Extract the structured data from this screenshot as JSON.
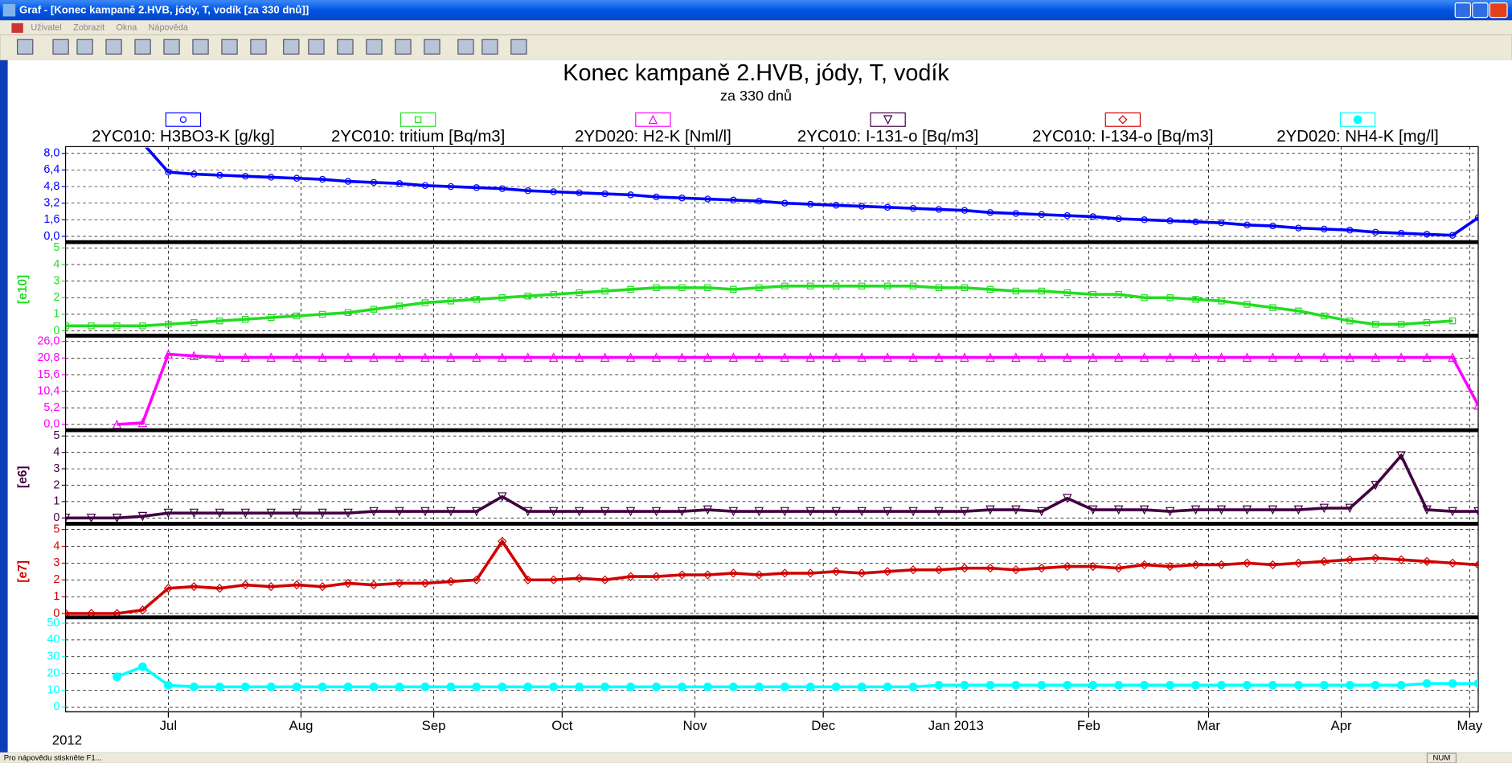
{
  "window": {
    "title": "Graf - [Konec kampaně 2.HVB, jódy, T, vodík  [za 330 dnů]]",
    "menu": [
      "Uživatel",
      "Zobrazit",
      "Okna",
      "Nápověda"
    ],
    "status": "Pro nápovědu stiskněte F1...",
    "indicator": "NUM"
  },
  "chart_data": {
    "type": "line",
    "title": "Konec kampaně 2.HVB, jódy, T, vodík",
    "subtitle": "za 330 dnů",
    "year_label": "2012",
    "grid": true,
    "xlim": [
      0,
      330
    ],
    "xticks": [
      {
        "value": 24,
        "label": "Jul"
      },
      {
        "value": 55,
        "label": "Aug"
      },
      {
        "value": 86,
        "label": "Sep"
      },
      {
        "value": 116,
        "label": "Oct"
      },
      {
        "value": 147,
        "label": "Nov"
      },
      {
        "value": 177,
        "label": "Dec"
      },
      {
        "value": 208,
        "label": "Jan 2013"
      },
      {
        "value": 239,
        "label": "Feb"
      },
      {
        "value": 267,
        "label": "Mar"
      },
      {
        "value": 298,
        "label": "Apr"
      },
      {
        "value": 328,
        "label": "May"
      }
    ],
    "x": [
      0,
      6,
      12,
      18,
      24,
      30,
      36,
      42,
      48,
      54,
      60,
      66,
      72,
      78,
      84,
      90,
      96,
      102,
      108,
      114,
      120,
      126,
      132,
      138,
      144,
      150,
      156,
      162,
      168,
      174,
      180,
      186,
      192,
      198,
      204,
      210,
      216,
      222,
      228,
      234,
      240,
      246,
      252,
      258,
      264,
      270,
      276,
      282,
      288,
      294,
      300,
      306,
      312,
      318,
      324,
      330
    ],
    "series": [
      {
        "name": "2YC010: H3BO3-K [g/kg]",
        "color": "#0000ff",
        "marker": "circle",
        "ylim": [
          0,
          8
        ],
        "yticks": [
          {
            "value": 0,
            "label": "0,0"
          },
          {
            "value": 1.6,
            "label": "1,6"
          },
          {
            "value": 3.2,
            "label": "3,2"
          },
          {
            "value": 4.8,
            "label": "4,8"
          },
          {
            "value": 6.4,
            "label": "6,4"
          },
          {
            "value": 8,
            "label": "8,0"
          }
        ],
        "values": [
          null,
          null,
          null,
          9.0,
          6.2,
          6.0,
          5.9,
          5.8,
          5.7,
          5.6,
          5.5,
          5.3,
          5.2,
          5.1,
          4.9,
          4.8,
          4.7,
          4.6,
          4.4,
          4.3,
          4.2,
          4.1,
          4.0,
          3.8,
          3.7,
          3.6,
          3.5,
          3.4,
          3.2,
          3.1,
          3.0,
          2.9,
          2.8,
          2.7,
          2.6,
          2.5,
          2.3,
          2.2,
          2.1,
          2.0,
          1.9,
          1.7,
          1.6,
          1.5,
          1.4,
          1.3,
          1.1,
          1.0,
          0.8,
          0.7,
          0.6,
          0.4,
          0.3,
          0.2,
          0.1,
          1.8
        ]
      },
      {
        "name": "2YC010: tritium [Bq/m3]",
        "color": "#22dd22",
        "marker": "square",
        "ylim": [
          0,
          5
        ],
        "scale_label": "[e10]",
        "yticks": [
          0,
          1,
          2,
          3,
          4,
          5
        ],
        "values": [
          0.3,
          0.3,
          0.3,
          0.3,
          0.4,
          0.5,
          0.6,
          0.7,
          0.8,
          0.9,
          1.0,
          1.1,
          1.3,
          1.5,
          1.7,
          1.8,
          1.9,
          2.0,
          2.1,
          2.2,
          2.3,
          2.4,
          2.5,
          2.6,
          2.6,
          2.6,
          2.5,
          2.6,
          2.7,
          2.7,
          2.7,
          2.7,
          2.7,
          2.7,
          2.6,
          2.6,
          2.5,
          2.4,
          2.4,
          2.3,
          2.2,
          2.2,
          2.0,
          2.0,
          1.9,
          1.8,
          1.6,
          1.4,
          1.2,
          0.9,
          0.6,
          0.4,
          0.4,
          0.5,
          0.6,
          null
        ]
      },
      {
        "name": "2YD020: H2-K [Nml/l]",
        "color": "#ff00ff",
        "marker": "triangle",
        "ylim": [
          0,
          26
        ],
        "yticks": [
          {
            "value": 0,
            "label": "0,0"
          },
          {
            "value": 5.2,
            "label": "5,2"
          },
          {
            "value": 10.4,
            "label": "10,4"
          },
          {
            "value": 15.6,
            "label": "15,6"
          },
          {
            "value": 20.8,
            "label": "20,8"
          },
          {
            "value": 26,
            "label": "26,0"
          }
        ],
        "values": [
          null,
          null,
          0,
          0.5,
          22,
          21.5,
          21,
          21,
          21,
          21,
          21,
          21,
          21,
          21,
          21,
          21,
          21,
          21,
          21,
          21,
          21,
          21,
          21,
          21,
          21,
          21,
          21,
          21,
          21,
          21,
          21,
          21,
          21,
          21,
          21,
          21,
          21,
          21,
          21,
          21,
          21,
          21,
          21,
          21,
          21,
          21,
          21,
          21,
          21,
          21,
          21,
          21,
          21,
          21,
          21,
          6
        ]
      },
      {
        "name": "2YC010: I-131-o [Bq/m3]",
        "color": "#400040",
        "marker": "triangle-down",
        "ylim": [
          0,
          5
        ],
        "scale_label": "[e6]",
        "yticks": [
          0,
          1,
          2,
          3,
          4,
          5
        ],
        "values": [
          0,
          0,
          0,
          0.1,
          0.3,
          0.3,
          0.3,
          0.3,
          0.3,
          0.3,
          0.3,
          0.3,
          0.4,
          0.4,
          0.4,
          0.4,
          0.4,
          1.3,
          0.4,
          0.4,
          0.4,
          0.4,
          0.4,
          0.4,
          0.4,
          0.5,
          0.4,
          0.4,
          0.4,
          0.4,
          0.4,
          0.4,
          0.4,
          0.4,
          0.4,
          0.4,
          0.5,
          0.5,
          0.4,
          1.2,
          0.5,
          0.5,
          0.5,
          0.4,
          0.5,
          0.5,
          0.5,
          0.5,
          0.5,
          0.6,
          0.6,
          2.0,
          3.8,
          0.5,
          0.4,
          0.4
        ]
      },
      {
        "name": "2YC010: I-134-o [Bq/m3]",
        "color": "#d00000",
        "marker": "diamond",
        "ylim": [
          0,
          5
        ],
        "scale_label": "[e7]",
        "yticks": [
          0,
          1,
          2,
          3,
          4,
          5
        ],
        "values": [
          0,
          0,
          0,
          0.2,
          1.5,
          1.6,
          1.5,
          1.7,
          1.6,
          1.7,
          1.6,
          1.8,
          1.7,
          1.8,
          1.8,
          1.9,
          2.0,
          4.3,
          2.0,
          2.0,
          2.1,
          2.0,
          2.2,
          2.2,
          2.3,
          2.3,
          2.4,
          2.3,
          2.4,
          2.4,
          2.5,
          2.4,
          2.5,
          2.6,
          2.6,
          2.7,
          2.7,
          2.6,
          2.7,
          2.8,
          2.8,
          2.7,
          2.9,
          2.8,
          2.9,
          2.9,
          3.0,
          2.9,
          3.0,
          3.1,
          3.2,
          3.3,
          3.2,
          3.1,
          3.0,
          2.9
        ]
      },
      {
        "name": "2YD020: NH4-K [mg/l]",
        "color": "#00ffff",
        "marker": "filled-circle",
        "ylim": [
          0,
          50
        ],
        "yticks": [
          0,
          10,
          20,
          30,
          40,
          50
        ],
        "values": [
          null,
          null,
          18,
          24,
          13,
          12,
          12,
          12,
          12,
          12,
          12,
          12,
          12,
          12,
          12,
          12,
          12,
          12,
          12,
          12,
          12,
          12,
          12,
          12,
          12,
          12,
          12,
          12,
          12,
          12,
          12,
          12,
          12,
          12,
          13,
          13,
          13,
          13,
          13,
          13,
          13,
          13,
          13,
          13,
          13,
          13,
          13,
          13,
          13,
          13,
          13,
          13,
          13,
          14,
          14,
          14
        ]
      }
    ]
  }
}
